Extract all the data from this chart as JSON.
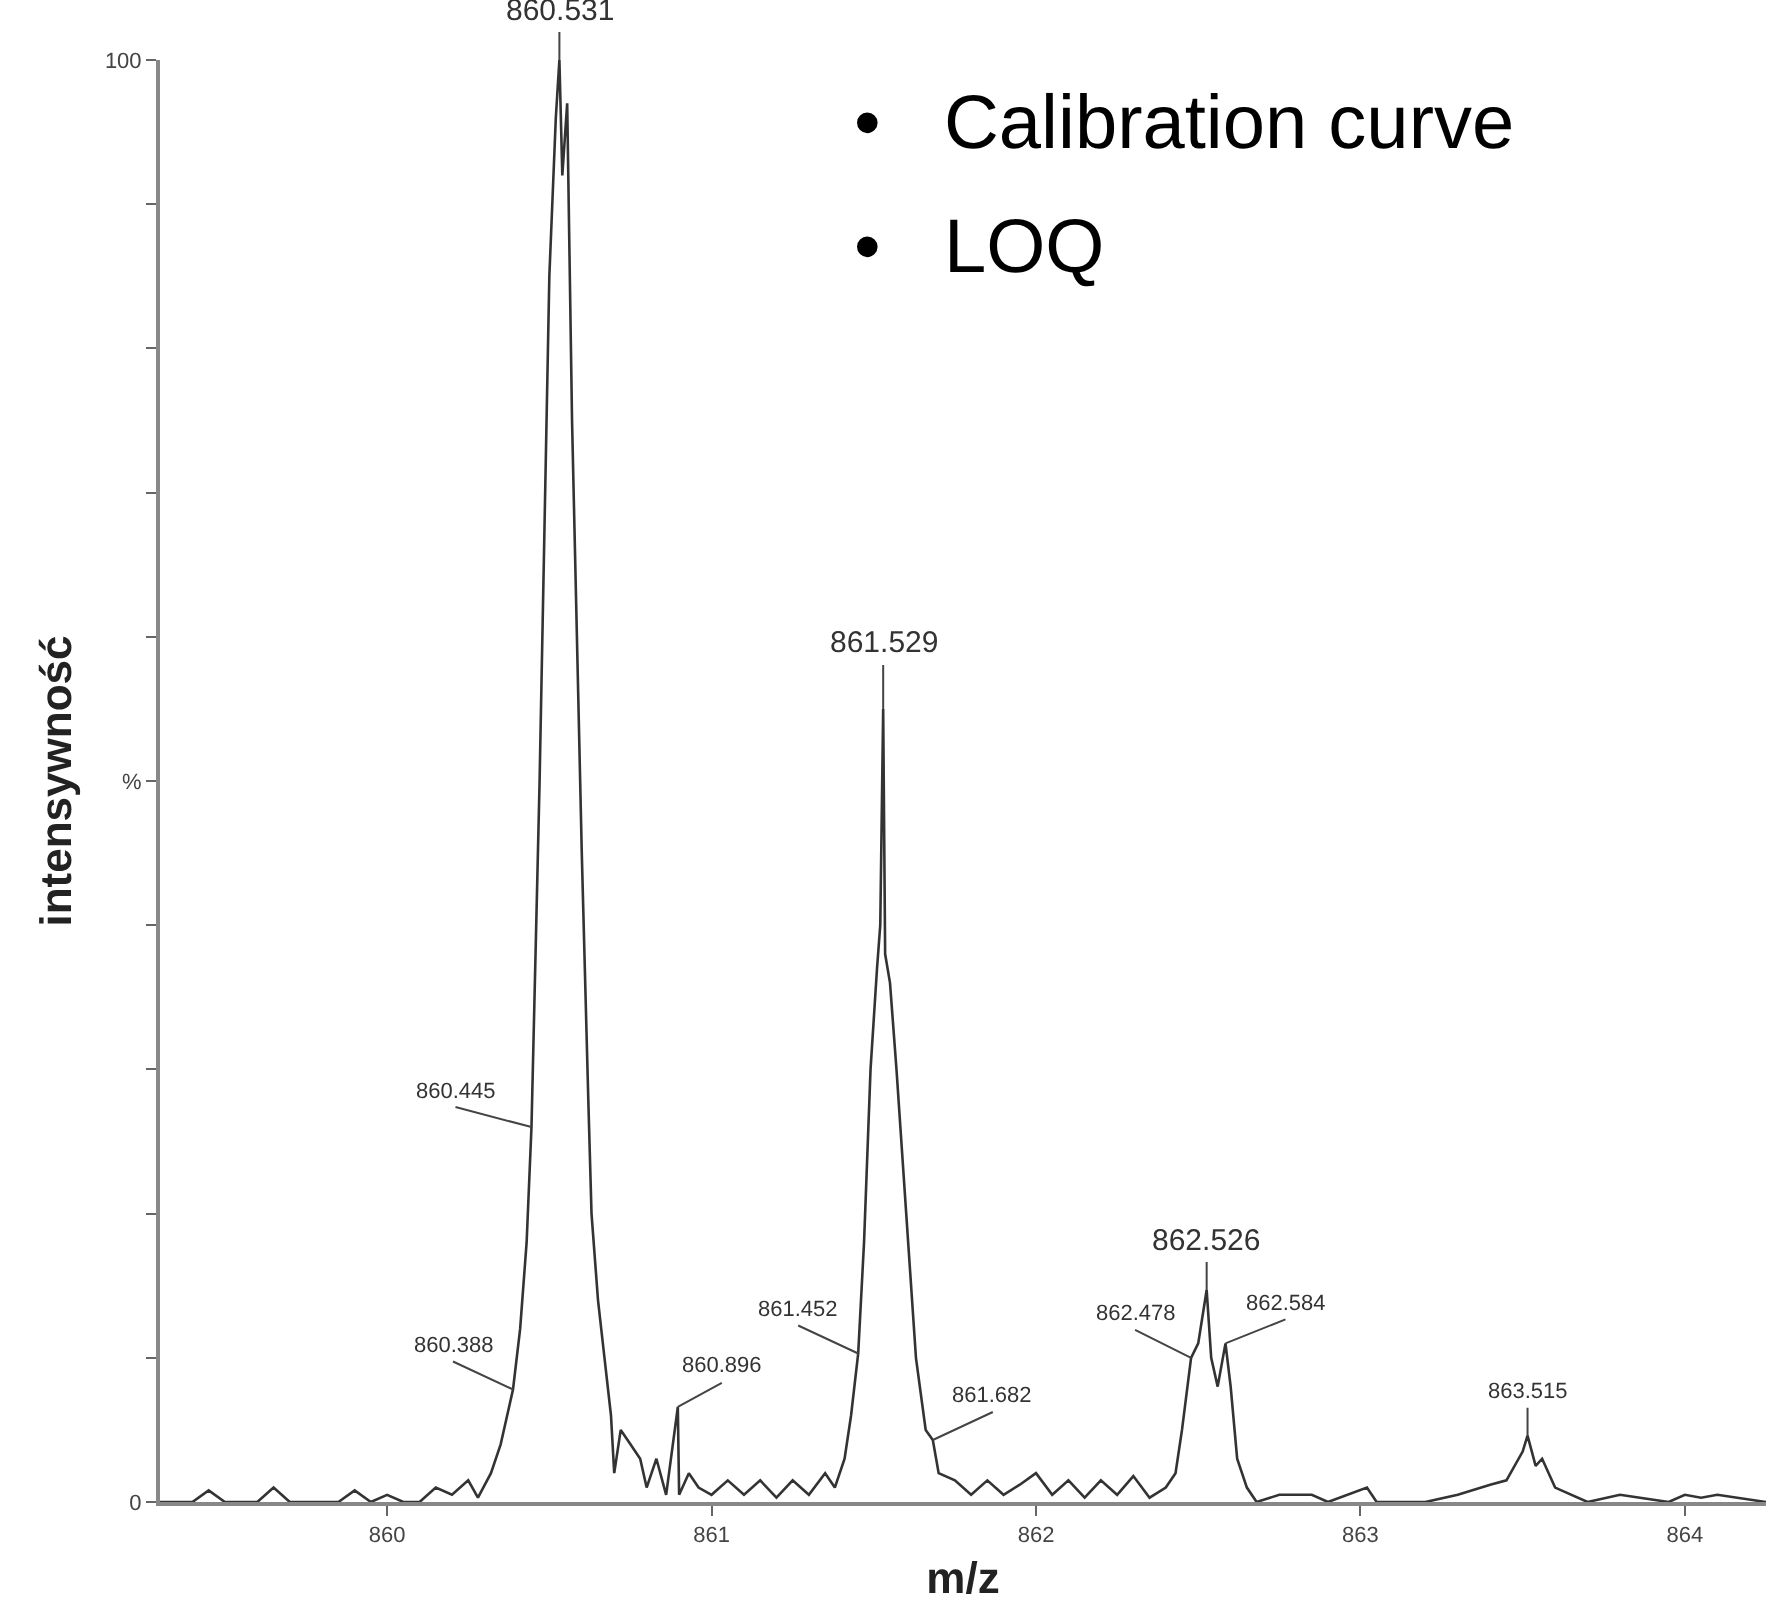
{
  "chart_data": {
    "type": "line",
    "xlabel": "m/z",
    "ylabel": "intensywność",
    "xlim": [
      859.3,
      864.25
    ],
    "xticks": [
      860,
      861,
      862,
      863,
      864
    ],
    "ylim": [
      0,
      100
    ],
    "yticks": [
      0,
      {
        "value": 10,
        "label": null
      },
      {
        "value": 20,
        "label": null
      },
      {
        "value": 30,
        "label": null
      },
      {
        "value": 40,
        "label": null
      },
      {
        "value": 50,
        "label": "%"
      },
      {
        "value": 60,
        "label": null
      },
      {
        "value": 70,
        "label": null
      },
      {
        "value": 80,
        "label": null
      },
      {
        "value": 90,
        "label": null
      },
      100
    ],
    "marker": "none",
    "line_style": "solid",
    "x": [
      859.3,
      859.4,
      859.45,
      859.5,
      859.6,
      859.65,
      859.7,
      859.85,
      859.9,
      859.95,
      860.0,
      860.05,
      860.1,
      860.15,
      860.2,
      860.25,
      860.28,
      860.32,
      860.35,
      860.37,
      860.388,
      860.41,
      860.43,
      860.445,
      860.47,
      860.5,
      860.52,
      860.531,
      860.54,
      860.555,
      860.57,
      860.6,
      860.62,
      860.63,
      860.65,
      860.67,
      860.69,
      860.7,
      860.72,
      860.75,
      860.78,
      860.8,
      860.83,
      860.86,
      860.896,
      860.9,
      860.93,
      860.96,
      861.0,
      861.05,
      861.1,
      861.15,
      861.2,
      861.25,
      861.3,
      861.35,
      861.38,
      861.41,
      861.43,
      861.452,
      861.47,
      861.49,
      861.51,
      861.52,
      861.529,
      861.535,
      861.55,
      861.57,
      861.6,
      861.63,
      861.66,
      861.682,
      861.7,
      861.75,
      861.8,
      861.85,
      861.9,
      861.95,
      862.0,
      862.05,
      862.1,
      862.15,
      862.2,
      862.25,
      862.3,
      862.35,
      862.4,
      862.43,
      862.45,
      862.478,
      862.5,
      862.526,
      862.54,
      862.56,
      862.584,
      862.6,
      862.62,
      862.65,
      862.68,
      862.75,
      862.85,
      862.9,
      863.02,
      863.05,
      863.2,
      863.3,
      863.4,
      863.45,
      863.5,
      863.515,
      863.54,
      863.56,
      863.6,
      863.7,
      863.8,
      863.95,
      864.0,
      864.05,
      864.1,
      864.25
    ],
    "series": [
      {
        "color": "#333333",
        "values": [
          0,
          0,
          0.8,
          0,
          0,
          1,
          0,
          0,
          0.8,
          0,
          0.5,
          0,
          0,
          1,
          0.5,
          1.5,
          0.3,
          2,
          4,
          6,
          7.8,
          12,
          18,
          26,
          50,
          85,
          96,
          100,
          92,
          97,
          75,
          45,
          28,
          20,
          14,
          10,
          6,
          2,
          5,
          4,
          3,
          1,
          3,
          0.5,
          6.6,
          0.5,
          2,
          1,
          0.5,
          1.5,
          0.5,
          1.5,
          0.3,
          1.5,
          0.5,
          2,
          1,
          3,
          6,
          10.3,
          18,
          30,
          37,
          40,
          55,
          38,
          36,
          30,
          20,
          10,
          5,
          4.3,
          2,
          1.5,
          0.5,
          1.5,
          0.5,
          1.2,
          2,
          0.5,
          1.5,
          0.3,
          1.5,
          0.5,
          1.8,
          0.3,
          1,
          2,
          5,
          10,
          11,
          14.7,
          10,
          8,
          11,
          8,
          3,
          1,
          0,
          0.5,
          0.5,
          0,
          1,
          0,
          0,
          0.5,
          1.2,
          1.5,
          3.5,
          4.6,
          2.5,
          3,
          1,
          0,
          0.5,
          0,
          0.5,
          0.3,
          0.5,
          0
        ]
      }
    ],
    "annotations": [
      {
        "text": "860.531",
        "x": 860.531,
        "y": 100
      },
      {
        "text": "861.529",
        "x": 861.529,
        "y": 55
      },
      {
        "text": "862.526",
        "x": 862.526,
        "y": 14.7
      },
      {
        "text": "860.445",
        "x": 860.445,
        "y": 26
      },
      {
        "text": "860.388",
        "x": 860.388,
        "y": 7.8
      },
      {
        "text": "860.896",
        "x": 860.896,
        "y": 6.6
      },
      {
        "text": "861.452",
        "x": 861.452,
        "y": 10.3
      },
      {
        "text": "861.682",
        "x": 861.682,
        "y": 4.3
      },
      {
        "text": "862.478",
        "x": 862.478,
        "y": 10
      },
      {
        "text": "862.584",
        "x": 862.584,
        "y": 11
      },
      {
        "text": "863.515",
        "x": 863.515,
        "y": 4.6
      },
      "•   Calibration curve",
      "•   LOQ"
    ]
  }
}
